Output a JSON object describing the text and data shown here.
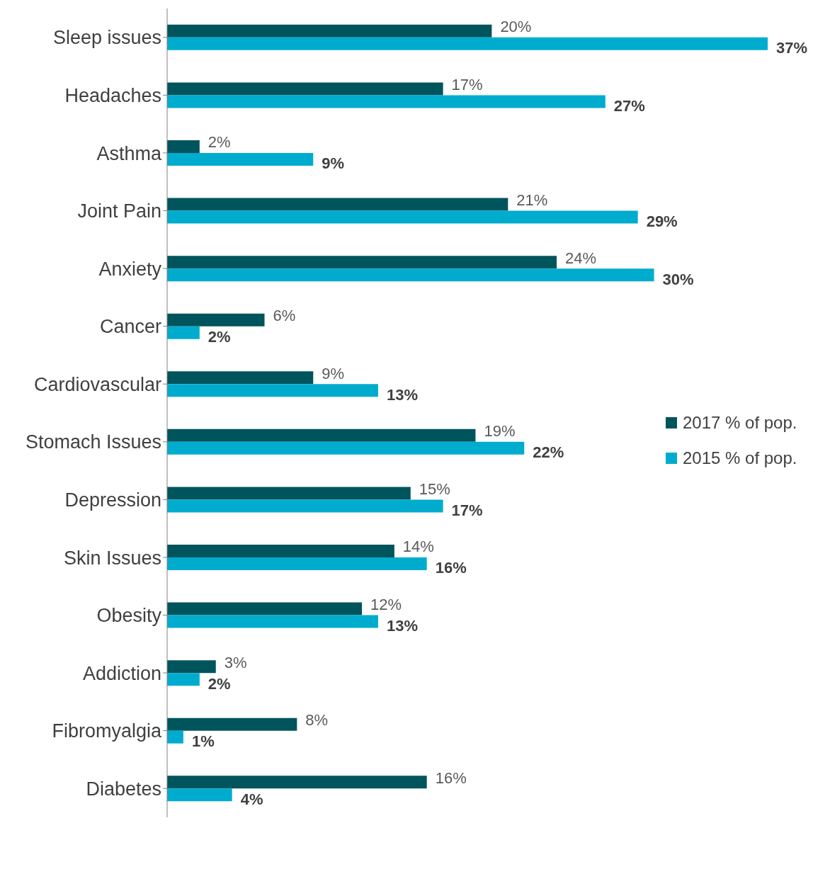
{
  "chart_data": {
    "type": "bar",
    "orientation": "horizontal",
    "categories": [
      "Sleep issues",
      "Headaches",
      "Asthma",
      "Joint Pain",
      "Anxiety",
      "Cancer",
      "Cardiovascular",
      "Stomach Issues",
      "Depression",
      "Skin Issues",
      "Obesity",
      "Addiction",
      "Fibromyalgia",
      "Diabetes"
    ],
    "series": [
      {
        "name": "2017 % of pop.",
        "color": "#00545c",
        "values": [
          20,
          17,
          2,
          21,
          24,
          6,
          9,
          19,
          15,
          14,
          12,
          3,
          8,
          16
        ],
        "value_labels": [
          "20%",
          "17%",
          "2%",
          "21%",
          "24%",
          "6%",
          "9%",
          "19%",
          "15%",
          "14%",
          "12%",
          "3%",
          "8%",
          "16%"
        ]
      },
      {
        "name": "2015 % of pop.",
        "color": "#00acce",
        "values": [
          37,
          27,
          9,
          29,
          30,
          2,
          13,
          22,
          17,
          16,
          13,
          2,
          1,
          4
        ],
        "value_labels": [
          "37%",
          "27%",
          "9%",
          "29%",
          "30%",
          "2%",
          "13%",
          "22%",
          "17%",
          "16%",
          "13%",
          "2%",
          "1%",
          "4%"
        ]
      }
    ],
    "legend": "right"
  }
}
